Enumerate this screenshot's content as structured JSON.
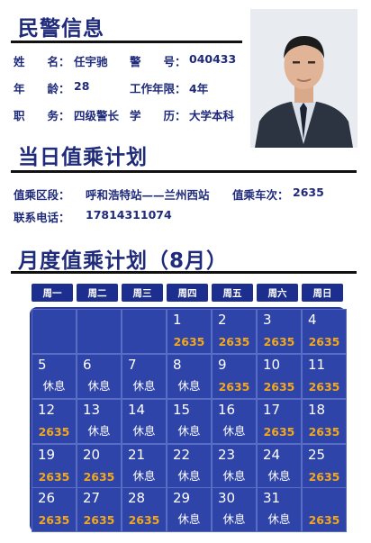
{
  "police_info": {
    "title": "民警信息",
    "rows": [
      {
        "l1": "姓　　名：",
        "v1": "任宇驰",
        "l2": "警　　号：",
        "v2": "040433"
      },
      {
        "l1": "年　　龄：",
        "v1": "28",
        "l2": "工作年限：",
        "v2": "4年"
      },
      {
        "l1": "职　　务：",
        "v1": "四级警长",
        "l2": "学　　历：",
        "v2": "大学本科"
      }
    ]
  },
  "daily_plan": {
    "title": "当日值乘计划",
    "section_label": "值乘区段：",
    "section_value": "呼和浩特站——兰州西站",
    "train_label": "值乘车次：",
    "train_value": "2635",
    "phone_label": "联系电话：",
    "phone_value": "17814311074"
  },
  "monthly_plan": {
    "title": "月度值乘计划（8月）",
    "weekdays": [
      "周一",
      "周二",
      "周三",
      "周四",
      "周五",
      "周六",
      "周日"
    ],
    "days": [
      {
        "day": "1",
        "status": "2635",
        "type": "duty"
      },
      {
        "day": "2",
        "status": "2635",
        "type": "duty"
      },
      {
        "day": "3",
        "status": "2635",
        "type": "duty"
      },
      {
        "day": "4",
        "status": "2635",
        "type": "duty"
      },
      {
        "day": "5",
        "status": "休息",
        "type": "rest"
      },
      {
        "day": "6",
        "status": "休息",
        "type": "rest"
      },
      {
        "day": "7",
        "status": "休息",
        "type": "rest"
      },
      {
        "day": "8",
        "status": "休息",
        "type": "rest"
      },
      {
        "day": "9",
        "status": "2635",
        "type": "duty"
      },
      {
        "day": "10",
        "status": "2635",
        "type": "duty"
      },
      {
        "day": "11",
        "status": "2635",
        "type": "duty"
      },
      {
        "day": "12",
        "status": "2635",
        "type": "duty"
      },
      {
        "day": "13",
        "status": "休息",
        "type": "rest"
      },
      {
        "day": "14",
        "status": "休息",
        "type": "rest"
      },
      {
        "day": "15",
        "status": "休息",
        "type": "rest"
      },
      {
        "day": "16",
        "status": "休息",
        "type": "rest"
      },
      {
        "day": "17",
        "status": "2635",
        "type": "duty"
      },
      {
        "day": "18",
        "status": "2635",
        "type": "duty"
      },
      {
        "day": "19",
        "status": "2635",
        "type": "duty"
      },
      {
        "day": "20",
        "status": "2635",
        "type": "duty"
      },
      {
        "day": "21",
        "status": "休息",
        "type": "rest"
      },
      {
        "day": "22",
        "status": "休息",
        "type": "rest"
      },
      {
        "day": "23",
        "status": "休息",
        "type": "rest"
      },
      {
        "day": "24",
        "status": "休息",
        "type": "rest"
      },
      {
        "day": "25",
        "status": "2635",
        "type": "duty"
      },
      {
        "day": "26",
        "status": "2635",
        "type": "duty"
      },
      {
        "day": "27",
        "status": "2635",
        "type": "duty"
      },
      {
        "day": "28",
        "status": "2635",
        "type": "duty"
      },
      {
        "day": "29",
        "status": "休息",
        "type": "rest"
      },
      {
        "day": "30",
        "status": "休息",
        "type": "rest"
      },
      {
        "day": "31",
        "status": "休息",
        "type": "rest"
      },
      {
        "day": "",
        "status": "2635",
        "type": "duty"
      }
    ],
    "colors": {
      "duty": "#f2a81c",
      "rest": "#ffffff",
      "panel": "#263a9e",
      "header": "#1c2f8e"
    }
  }
}
